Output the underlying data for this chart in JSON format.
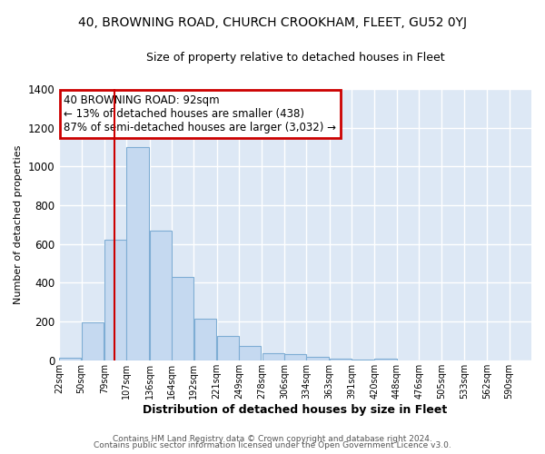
{
  "title": "40, BROWNING ROAD, CHURCH CROOKHAM, FLEET, GU52 0YJ",
  "subtitle": "Size of property relative to detached houses in Fleet",
  "xlabel": "Distribution of detached houses by size in Fleet",
  "ylabel": "Number of detached properties",
  "bar_color": "#c5d9f0",
  "bar_edge_color": "#7eadd4",
  "background_color": "#dde8f5",
  "grid_color": "#ffffff",
  "bin_labels": [
    "22sqm",
    "50sqm",
    "79sqm",
    "107sqm",
    "136sqm",
    "164sqm",
    "192sqm",
    "221sqm",
    "249sqm",
    "278sqm",
    "306sqm",
    "334sqm",
    "363sqm",
    "391sqm",
    "420sqm",
    "448sqm",
    "476sqm",
    "505sqm",
    "533sqm",
    "562sqm",
    "590sqm"
  ],
  "bar_values": [
    15,
    195,
    620,
    1100,
    670,
    430,
    215,
    125,
    75,
    35,
    30,
    17,
    10,
    5,
    10,
    0,
    0,
    0,
    0,
    0
  ],
  "ylim": [
    0,
    1400
  ],
  "yticks": [
    0,
    200,
    400,
    600,
    800,
    1000,
    1200,
    1400
  ],
  "vline_x": 92,
  "bin_starts": [
    22,
    50,
    79,
    107,
    136,
    164,
    192,
    221,
    249,
    278,
    306,
    334,
    363,
    391,
    420,
    448,
    476,
    505,
    533,
    562,
    590
  ],
  "bin_width": 28,
  "annotation_text": "40 BROWNING ROAD: 92sqm\n← 13% of detached houses are smaller (438)\n87% of semi-detached houses are larger (3,032) →",
  "annotation_box_color": "#ffffff",
  "annotation_box_edge": "#cc0000",
  "vline_color": "#cc0000",
  "footer1": "Contains HM Land Registry data © Crown copyright and database right 2024.",
  "footer2": "Contains public sector information licensed under the Open Government Licence v3.0."
}
